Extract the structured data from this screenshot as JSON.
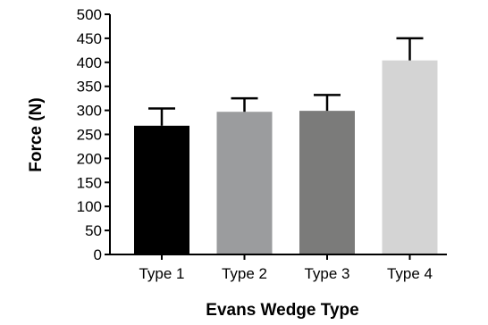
{
  "chart_data": {
    "type": "bar",
    "title": "",
    "xlabel": "Evans Wedge Type",
    "ylabel": "Force (N)",
    "categories": [
      "Type 1",
      "Type 2",
      "Type 3",
      "Type 4"
    ],
    "values": [
      268,
      297,
      299,
      404
    ],
    "error": [
      36,
      28,
      33,
      46
    ],
    "ylim": [
      0,
      500
    ],
    "yticks": [
      0,
      50,
      100,
      150,
      200,
      250,
      300,
      350,
      400,
      450,
      500
    ],
    "ytick_labels": [
      "0",
      "50",
      "100",
      "150",
      "200",
      "250",
      "300",
      "350",
      "400",
      "450",
      "500"
    ],
    "bar_colors": [
      "#000000",
      "#9b9c9e",
      "#7b7b7a",
      "#d4d4d4"
    ],
    "grid": false,
    "legend": "none"
  }
}
